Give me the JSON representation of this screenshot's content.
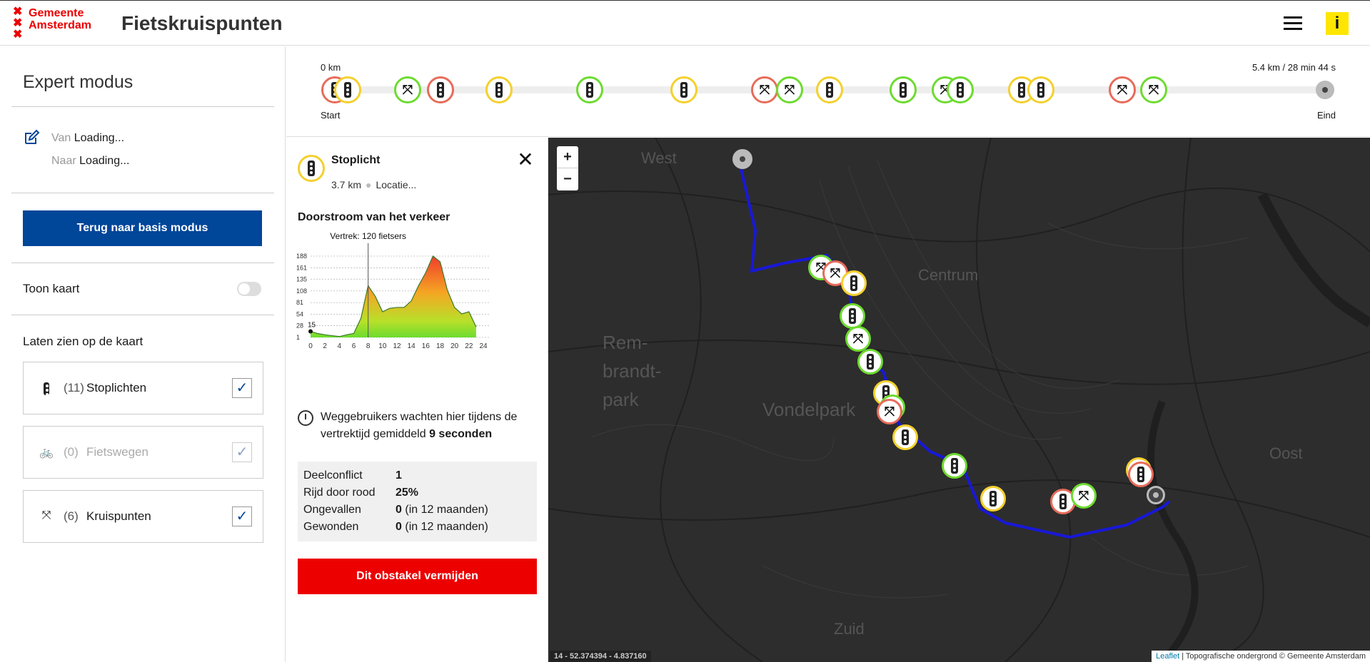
{
  "header": {
    "logo_line1": "Gemeente",
    "logo_line2": "Amsterdam",
    "title": "Fietskruispunten",
    "info_label": "i"
  },
  "sidebar": {
    "title": "Expert modus",
    "van_label": "Van",
    "van_value": "Loading...",
    "naar_label": "Naar",
    "naar_value": "Loading...",
    "back_button": "Terug naar basis modus",
    "toon_kaart": "Toon kaart",
    "toon_kaart_on": false,
    "laten_zien": "Laten zien op de kaart",
    "filters": [
      {
        "count": "(11)",
        "label": "Stoplichten",
        "checked": true,
        "icon": "traffic-light-icon"
      },
      {
        "count": "(0)",
        "label": "Fietswegen",
        "checked": true,
        "icon": "bike-icon"
      },
      {
        "count": "(6)",
        "label": "Kruispunten",
        "checked": true,
        "icon": "fork-icon"
      }
    ]
  },
  "route_bar": {
    "start_km": "0 km",
    "end_km": "5.4 km / 28 min 44 s",
    "start_label": "Start",
    "end_label": "Eind"
  },
  "detail": {
    "title": "Stoplicht",
    "distance": "3.7 km",
    "location": "Locatie...",
    "flow_title": "Doorstroom van het verkeer",
    "wait_text": "Weggebruikers wachten hier tijdens de vertrektijd gemiddeld",
    "wait_value": "9 seconden",
    "stats": [
      {
        "key": "Deelconflict",
        "value": "1",
        "extra": ""
      },
      {
        "key": "Rijd door rood",
        "value": "25%",
        "extra": ""
      },
      {
        "key": "Ongevallen",
        "value": "0",
        "extra": "(in 12 maanden)"
      },
      {
        "key": "Gewonden",
        "value": "0",
        "extra": "(in 12 maanden)"
      }
    ],
    "avoid_button": "Dit obstakel vermijden"
  },
  "chart_data": {
    "type": "area",
    "title": "",
    "annotation": "Vertrek: 120 fietsers",
    "annotation_x": 8,
    "start_label": "15",
    "x_ticks": [
      0,
      2,
      4,
      6,
      8,
      10,
      12,
      14,
      16,
      18,
      20,
      22,
      24
    ],
    "y_ticks": [
      1,
      28,
      54,
      81,
      108,
      135,
      161,
      188
    ],
    "xlim": [
      0,
      24
    ],
    "ylim": [
      1,
      188
    ],
    "x": [
      0,
      1,
      2,
      3,
      4,
      5,
      6,
      7,
      8,
      9,
      10,
      11,
      12,
      13,
      14,
      15,
      16,
      17,
      18,
      19,
      20,
      21,
      22,
      23
    ],
    "values": [
      15,
      10,
      7,
      5,
      3,
      7,
      10,
      45,
      120,
      95,
      60,
      68,
      70,
      70,
      85,
      120,
      150,
      188,
      175,
      110,
      70,
      55,
      60,
      25
    ]
  },
  "map": {
    "labels": [
      "West",
      "Centrum",
      "Rem-",
      "brandt-",
      "park",
      "Vondelpark",
      "Oost",
      "Zuid"
    ],
    "zoom_in": "+",
    "zoom_out": "−",
    "coords": "14 - 52.374394 - 4.837160",
    "attrib_leaflet": "Leaflet",
    "attrib_text": "| Topografische ondergrond © Gemeente Amsterdam"
  }
}
